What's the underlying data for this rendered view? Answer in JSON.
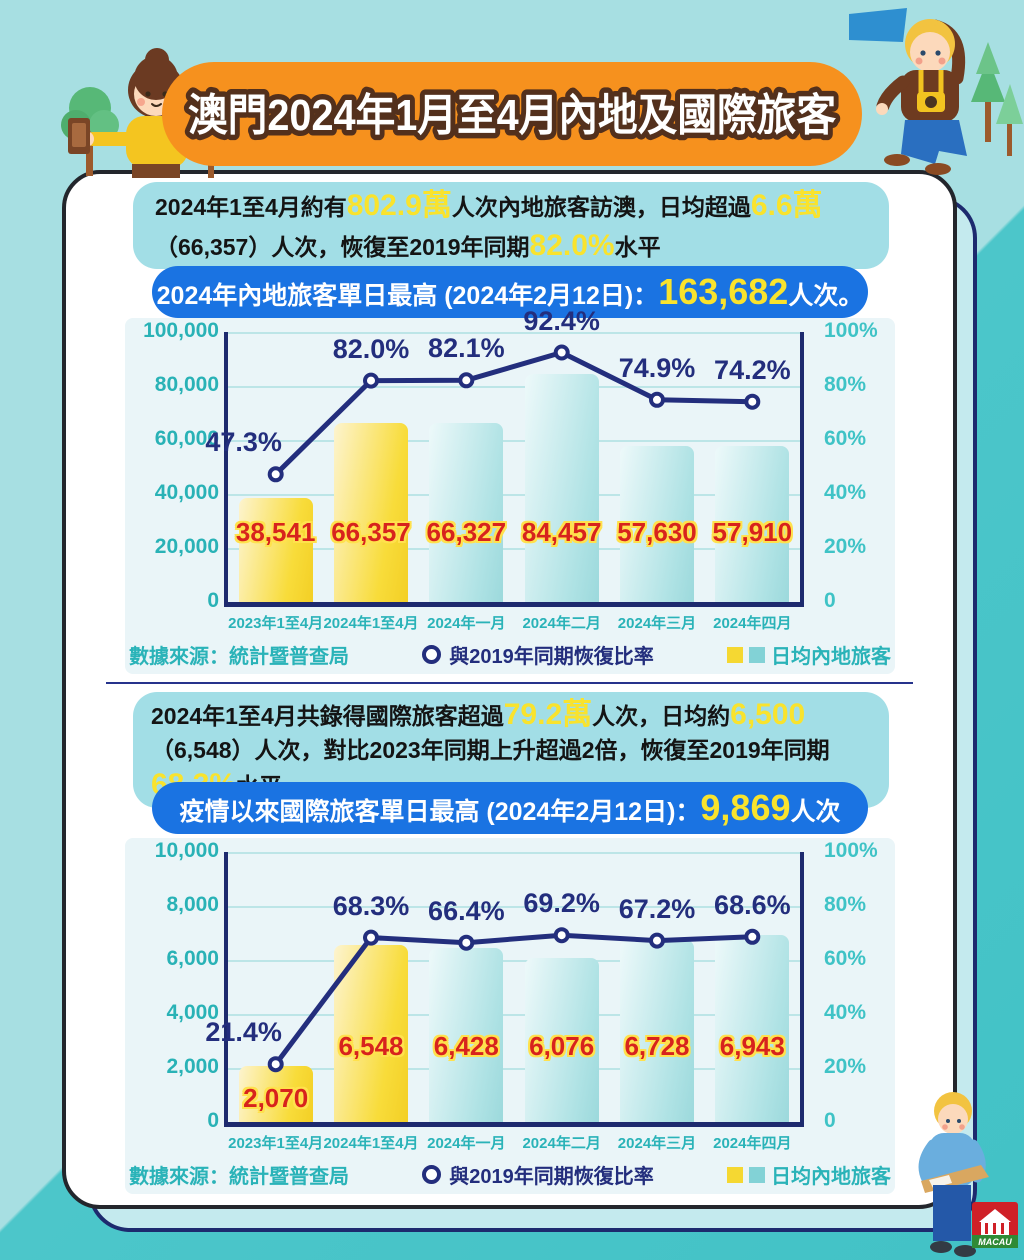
{
  "title": {
    "text": "澳門2024年1月至4月內地及國際旅客"
  },
  "colors": {
    "banner_orange": "#f6911e",
    "title_stroke_brown": "#53301c",
    "summary_bg_cyan": "#a2dee6",
    "pill_blue": "#1a73e2",
    "highlight_yellow": "#f9e32d",
    "line_navy": "#232e7d",
    "bar_gold": "#f8dc3a",
    "bar_cyan": "#aee2e4",
    "axis_teal": "#2ab3b8",
    "value_red": "#d7231d",
    "background_teal_light": "#a7dfe2",
    "background_teal_dark": "#42c2c6"
  },
  "icons": {
    "legend_line_marker": "ring-circle",
    "legend_bar_swatches": [
      "yellow-square",
      "teal-square"
    ],
    "decorations": [
      "girl-illustration",
      "boy-illustration",
      "flag-icon",
      "tree-icon",
      "map-reader-illustration",
      "mgto-logo"
    ]
  },
  "sections": [
    {
      "summary_segments": [
        {
          "text": "2024年1至4月約有",
          "style": "dark"
        },
        {
          "text": "802.9萬",
          "style": "yellow"
        },
        {
          "text": "人次內地旅客訪澳，日均超過",
          "style": "dark"
        },
        {
          "text": "6.6萬",
          "style": "yellow"
        },
        {
          "text": "（66,357）人次，恢復至2019年同期",
          "style": "dark"
        },
        {
          "text": "82.0%",
          "style": "yellow"
        },
        {
          "text": "水平",
          "style": "dark"
        }
      ],
      "highlight_segments": [
        {
          "text": "2024年內地旅客單日最高 (2024年2月12日)：",
          "style": "white"
        },
        {
          "text": "163,682",
          "style": "yellowbig"
        },
        {
          "text": "人次。",
          "style": "white"
        }
      ],
      "source": "數據來源：統計暨普查局",
      "legend_line": "與2019年同期恢復比率",
      "legend_bar": "日均內地旅客"
    },
    {
      "summary_segments": [
        {
          "text": "2024年1至4月共錄得國際旅客超過",
          "style": "dark"
        },
        {
          "text": "79.2萬",
          "style": "yellow"
        },
        {
          "text": "人次，日均約",
          "style": "dark"
        },
        {
          "text": "6,500",
          "style": "yellow"
        },
        {
          "text": "（6,548）人次，對比2023年同期上升超過2倍，恢復至2019年同期",
          "style": "dark"
        },
        {
          "text": "68.3%",
          "style": "yellow"
        },
        {
          "text": "水平",
          "style": "dark"
        }
      ],
      "highlight_segments": [
        {
          "text": "疫情以來國際旅客單日最高 (2024年2月12日)：",
          "style": "white"
        },
        {
          "text": "9,869",
          "style": "yellowbig"
        },
        {
          "text": "人次",
          "style": "white"
        }
      ],
      "source": "數據來源：統計暨普查局",
      "legend_line": "與2019年同期恢復比率",
      "legend_bar": "日均內地旅客"
    }
  ],
  "chart_data": [
    {
      "type": "bar",
      "categories": [
        "2023年1至4月",
        "2024年1至4月",
        "2024年一月",
        "2024年二月",
        "2024年三月",
        "2024年四月"
      ],
      "series": [
        {
          "name": "日均內地旅客",
          "type": "bar",
          "values": [
            38541,
            66357,
            66327,
            84457,
            57630,
            57910
          ]
        },
        {
          "name": "與2019年同期恢復比率",
          "type": "line",
          "values": [
            47.3,
            82.0,
            82.1,
            92.4,
            74.9,
            74.2
          ],
          "unit": "%"
        }
      ],
      "bar_value_labels": [
        "38,541",
        "66,357",
        "66,327",
        "84,457",
        "57,630",
        "57,910"
      ],
      "line_value_labels": [
        "47.3%",
        "82.0%",
        "82.1%",
        "92.4%",
        "74.9%",
        "74.2%"
      ],
      "y_left": {
        "ticks": [
          "100,000",
          "80,000",
          "60,000",
          "40,000",
          "20,000",
          "0"
        ],
        "max": 100000
      },
      "y_right": {
        "ticks": [
          "100%",
          "80%",
          "60%",
          "40%",
          "20%",
          "0"
        ],
        "max": 100
      },
      "highlight_bars": 2,
      "label_level": 26000,
      "grid": true,
      "legend_position": "bottom"
    },
    {
      "type": "bar",
      "categories": [
        "2023年1至4月",
        "2024年1至4月",
        "2024年一月",
        "2024年二月",
        "2024年三月",
        "2024年四月"
      ],
      "series": [
        {
          "name": "日均內地旅客",
          "type": "bar",
          "values": [
            2070,
            6548,
            6428,
            6076,
            6728,
            6943
          ]
        },
        {
          "name": "與2019年同期恢復比率",
          "type": "line",
          "values": [
            21.4,
            68.3,
            66.4,
            69.2,
            67.2,
            68.6
          ],
          "unit": "%"
        }
      ],
      "bar_value_labels": [
        "2,070",
        "6,548",
        "6,428",
        "6,076",
        "6,728",
        "6,943"
      ],
      "line_value_labels": [
        "21.4%",
        "68.3%",
        "66.4%",
        "69.2%",
        "67.2%",
        "68.6%"
      ],
      "y_left": {
        "ticks": [
          "10,000",
          "8,000",
          "6,000",
          "4,000",
          "2,000",
          "0"
        ],
        "max": 10000
      },
      "y_right": {
        "ticks": [
          "100%",
          "80%",
          "60%",
          "40%",
          "20%",
          "0"
        ],
        "max": 100
      },
      "highlight_bars": 2,
      "label_level": 2800,
      "grid": true,
      "legend_position": "bottom"
    }
  ],
  "footer": {
    "logo_text": "MACAU"
  }
}
